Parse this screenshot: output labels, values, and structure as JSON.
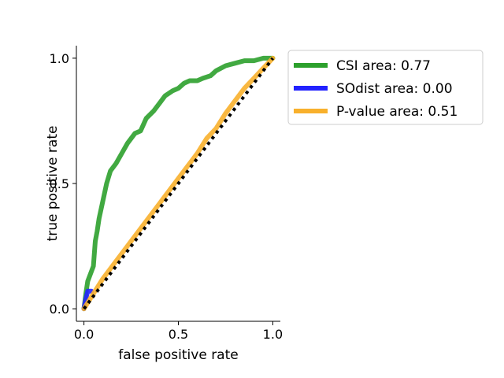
{
  "chart_data": {
    "type": "line",
    "title": "",
    "xlabel": "false positive rate",
    "ylabel": "true positive rate",
    "xlim": [
      -0.04,
      1.04
    ],
    "ylim": [
      -0.05,
      1.05
    ],
    "xticks": [
      0.0,
      0.5,
      1.0
    ],
    "xtick_labels": [
      "0.0",
      "0.5",
      "1.0"
    ],
    "yticks": [
      0.0,
      0.5,
      1.0
    ],
    "ytick_labels": [
      "0.0",
      "0.5",
      "1.0"
    ],
    "grid": false,
    "legend_placement": "outside upper right",
    "series": [
      {
        "name": "CSI area: 0.77",
        "color": "#2ca02c",
        "x": [
          0.0,
          0.01,
          0.02,
          0.03,
          0.05,
          0.06,
          0.07,
          0.08,
          0.1,
          0.12,
          0.14,
          0.17,
          0.2,
          0.23,
          0.27,
          0.3,
          0.33,
          0.37,
          0.4,
          0.43,
          0.47,
          0.5,
          0.53,
          0.56,
          0.6,
          0.63,
          0.67,
          0.7,
          0.75,
          0.8,
          0.85,
          0.9,
          0.95,
          1.0
        ],
        "y": [
          0.0,
          0.06,
          0.11,
          0.13,
          0.17,
          0.27,
          0.31,
          0.36,
          0.43,
          0.5,
          0.55,
          0.58,
          0.62,
          0.66,
          0.7,
          0.71,
          0.76,
          0.79,
          0.82,
          0.85,
          0.87,
          0.88,
          0.9,
          0.91,
          0.91,
          0.92,
          0.93,
          0.95,
          0.97,
          0.98,
          0.99,
          0.99,
          1.0,
          1.0
        ]
      },
      {
        "name": "SOdist area: 0.00",
        "color": "#2222ff",
        "x": [
          0.0,
          0.01,
          0.02,
          0.04
        ],
        "y": [
          0.0,
          0.04,
          0.07,
          0.07
        ]
      },
      {
        "name": "P-value area: 0.51",
        "color": "#f8b02c",
        "x": [
          0.0,
          0.05,
          0.1,
          0.2,
          0.3,
          0.4,
          0.5,
          0.6,
          0.65,
          0.7,
          0.75,
          0.8,
          0.85,
          0.9,
          0.95,
          1.0
        ],
        "y": [
          0.0,
          0.06,
          0.12,
          0.22,
          0.32,
          0.42,
          0.52,
          0.62,
          0.68,
          0.72,
          0.78,
          0.83,
          0.88,
          0.92,
          0.96,
          1.0
        ]
      }
    ],
    "reference_line": {
      "x": [
        0.0,
        1.0
      ],
      "y": [
        0.0,
        1.0
      ],
      "color": "#000000",
      "style": "dotted"
    }
  }
}
